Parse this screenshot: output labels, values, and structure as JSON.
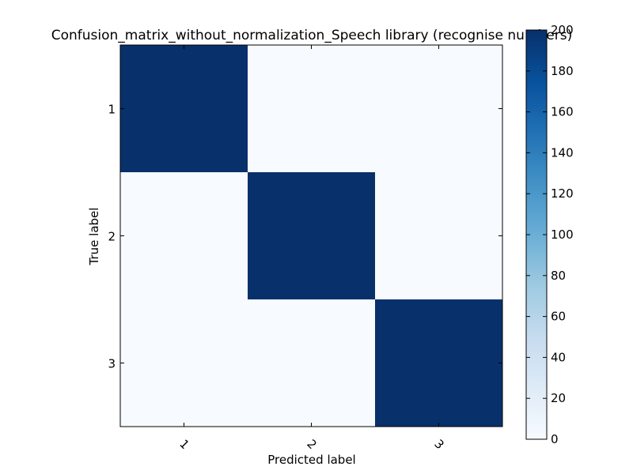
{
  "chart_data": {
    "type": "heatmap",
    "title": "Confusion_matrix_without_normalization_Speech library (recognise numbers)",
    "xlabel": "Predicted label",
    "ylabel": "True label",
    "x_categories": [
      "1",
      "2",
      "3"
    ],
    "y_categories": [
      "1",
      "2",
      "3"
    ],
    "matrix": [
      [
        200,
        0,
        0
      ],
      [
        0,
        200,
        0
      ],
      [
        0,
        0,
        200
      ]
    ],
    "colorbar": {
      "min": 0,
      "max": 200,
      "ticks": [
        0,
        20,
        40,
        60,
        80,
        100,
        120,
        140,
        160,
        180,
        200
      ],
      "colormap": "Blues",
      "low_color": "#f7fbff",
      "high_color": "#08306b"
    },
    "x_tick_rotation": 45,
    "grid": false
  }
}
